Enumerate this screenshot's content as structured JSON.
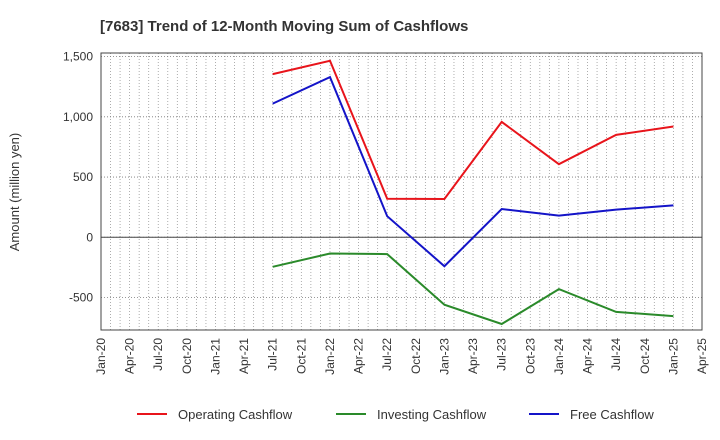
{
  "chart_data": {
    "type": "line",
    "title": "[7683]  Trend of 12-Month Moving Sum of Cashflows",
    "xlabel": "",
    "ylabel": "Amount (million yen)",
    "x_ticks": [
      "Jan-20",
      "Apr-20",
      "Jul-20",
      "Oct-20",
      "Jan-21",
      "Apr-21",
      "Jul-21",
      "Oct-21",
      "Jan-22",
      "Apr-22",
      "Jul-22",
      "Oct-22",
      "Jan-23",
      "Apr-23",
      "Jul-23",
      "Oct-23",
      "Jan-24",
      "Apr-24",
      "Jul-24",
      "Oct-24",
      "Jan-25",
      "Apr-25"
    ],
    "y_ticks": [
      "1,500",
      "1,000",
      "500",
      "0",
      "-500"
    ],
    "y_tick_values": [
      1500,
      1000,
      500,
      0,
      -500
    ],
    "ylim": [
      -770,
      1530
    ],
    "grid": true,
    "legend_position": "bottom",
    "x": [
      "Jul-21",
      "Jan-22",
      "Jul-22",
      "Jan-23",
      "Jul-23",
      "Jan-24",
      "Jul-24",
      "Jan-25"
    ],
    "series": [
      {
        "name": "Operating Cashflow",
        "color": "#e8141b",
        "values": [
          1355,
          1465,
          320,
          318,
          958,
          607,
          850,
          920
        ]
      },
      {
        "name": "Investing Cashflow",
        "color": "#2a8a2a",
        "values": [
          -245,
          -135,
          -140,
          -560,
          -720,
          -430,
          -620,
          -655
        ]
      },
      {
        "name": "Free Cashflow",
        "color": "#1414c8",
        "values": [
          1110,
          1330,
          175,
          -240,
          235,
          180,
          230,
          265
        ]
      }
    ]
  }
}
